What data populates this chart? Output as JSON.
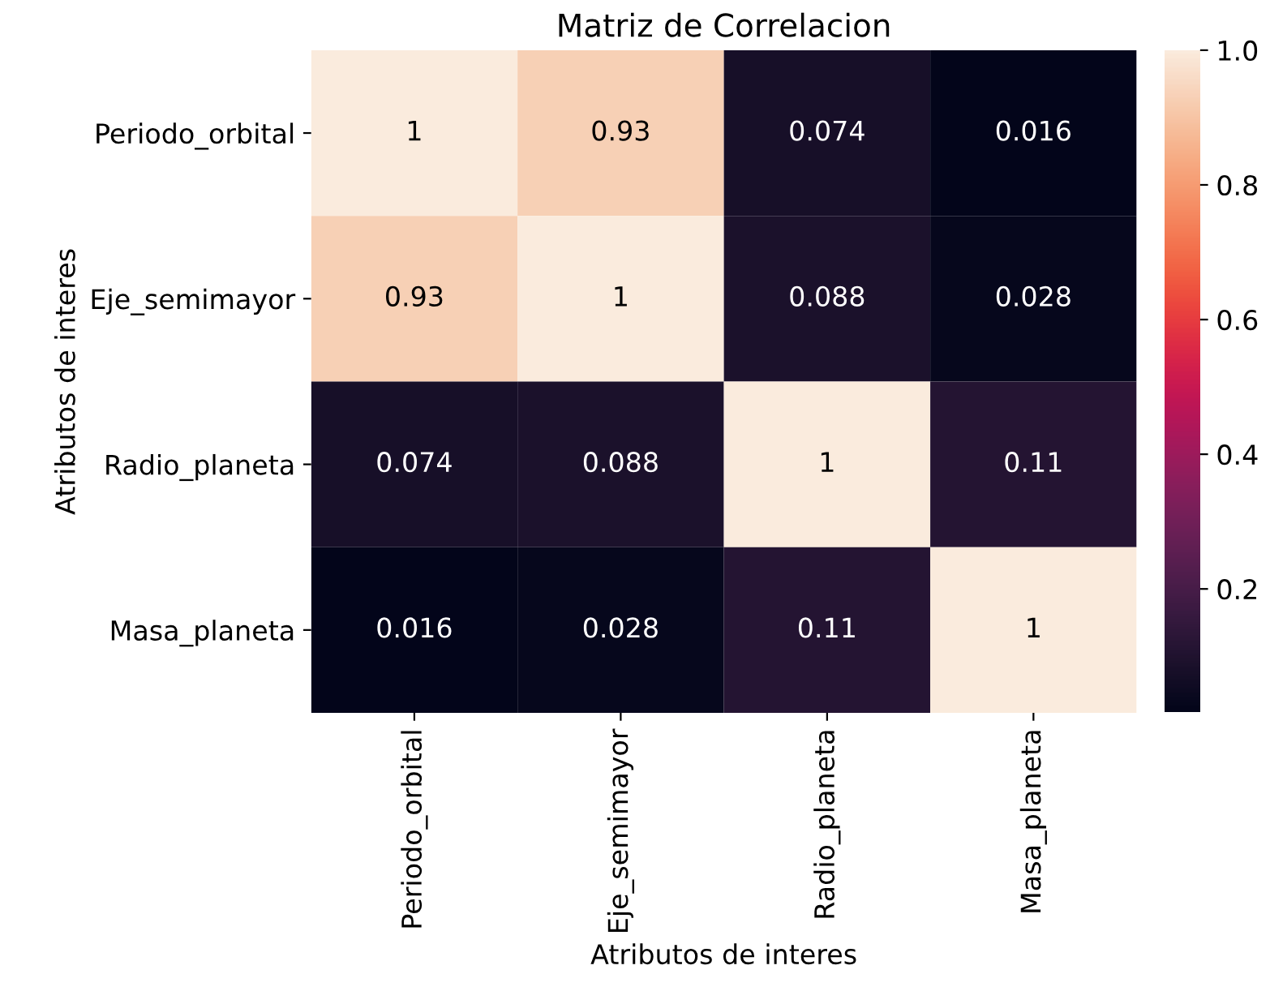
{
  "chart_data": {
    "type": "heatmap",
    "title": "Matriz de Correlacion",
    "xlabel": "Atributos de interes",
    "ylabel": "Atributos de interes",
    "categories": [
      "Periodo_orbital",
      "Eje_semimayor",
      "Radio_planeta",
      "Masa_planeta"
    ],
    "y_categories": [
      "Periodo_orbital",
      "Eje_semimayor",
      "Radio_planeta",
      "Masa_planeta"
    ],
    "cells": [
      [
        1,
        0.93,
        0.074,
        0.016
      ],
      [
        0.93,
        1,
        0.088,
        0.028
      ],
      [
        0.074,
        0.088,
        1,
        0.11
      ],
      [
        0.016,
        0.028,
        0.11,
        1
      ]
    ],
    "data_labels": true,
    "clim": [
      0.016,
      1
    ],
    "cticks": [
      0.2,
      0.4,
      0.6,
      0.8,
      {
        "value": 1,
        "label": "1.0"
      }
    ]
  }
}
